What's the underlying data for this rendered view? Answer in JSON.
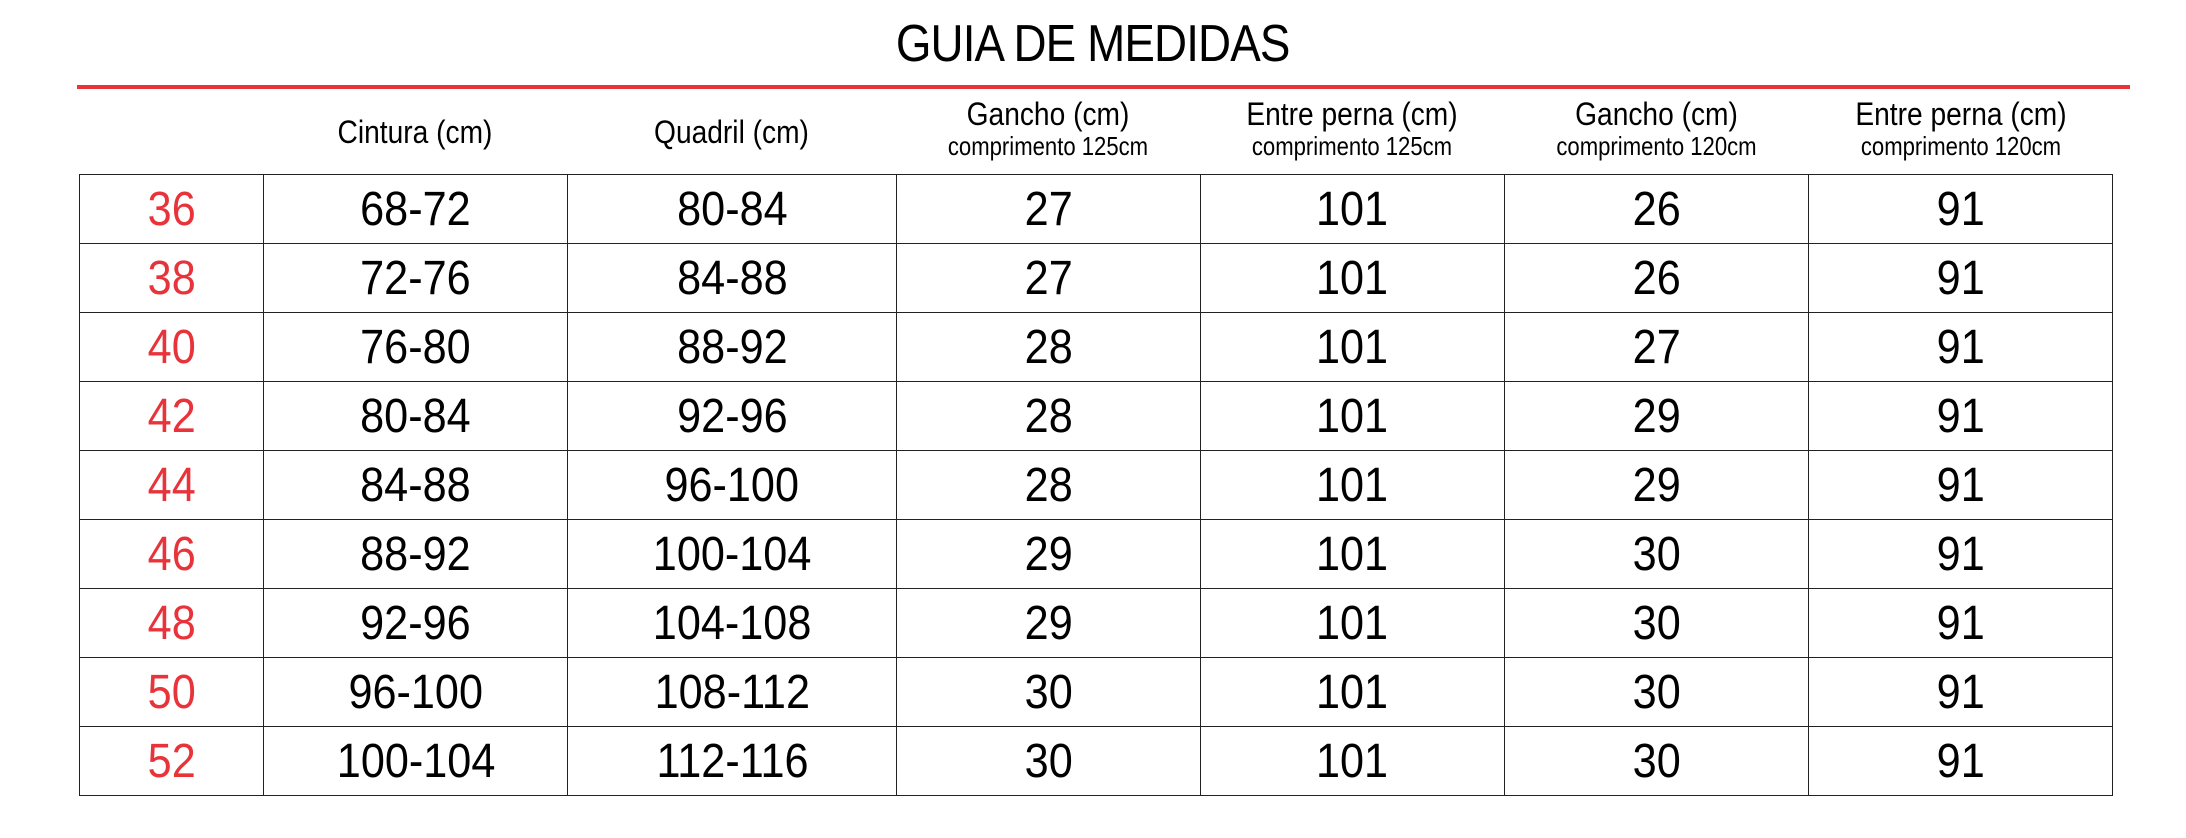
{
  "title": "GUIA DE MEDIDAS",
  "colors": {
    "accent": "#e8333a",
    "text": "#000000"
  },
  "headers": [
    {
      "label": "Cintura (cm)",
      "sub": ""
    },
    {
      "label": "Quadril (cm)",
      "sub": ""
    },
    {
      "label": "Gancho (cm)",
      "sub": "comprimento 125cm"
    },
    {
      "label": "Entre perna (cm)",
      "sub": "comprimento 125cm"
    },
    {
      "label": "Gancho (cm)",
      "sub": "comprimento 120cm"
    },
    {
      "label": "Entre perna (cm)",
      "sub": "comprimento 120cm"
    }
  ],
  "rows": [
    [
      "36",
      "68-72",
      "80-84",
      "27",
      "101",
      "26",
      "91"
    ],
    [
      "38",
      "72-76",
      "84-88",
      "27",
      "101",
      "26",
      "91"
    ],
    [
      "40",
      "76-80",
      "88-92",
      "28",
      "101",
      "27",
      "91"
    ],
    [
      "42",
      "80-84",
      "92-96",
      "28",
      "101",
      "29",
      "91"
    ],
    [
      "44",
      "84-88",
      "96-100",
      "28",
      "101",
      "29",
      "91"
    ],
    [
      "46",
      "88-92",
      "100-104",
      "29",
      "101",
      "30",
      "91"
    ],
    [
      "48",
      "92-96",
      "104-108",
      "29",
      "101",
      "30",
      "91"
    ],
    [
      "50",
      "96-100",
      "108-112",
      "30",
      "101",
      "30",
      "91"
    ],
    [
      "52",
      "100-104",
      "112-116",
      "30",
      "101",
      "30",
      "91"
    ]
  ]
}
